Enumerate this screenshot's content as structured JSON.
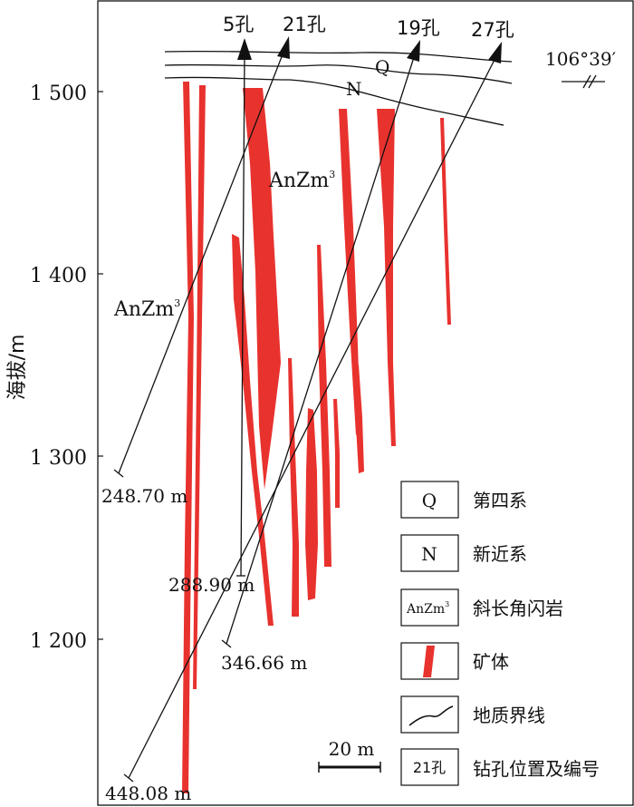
{
  "y_axis": {
    "label": "海拔/m",
    "ticks": [
      "1 500",
      "1 400",
      "1 300",
      "1 200"
    ]
  },
  "boreholes": [
    {
      "label": "5孔",
      "depth_label": "288.90 m"
    },
    {
      "label": "21孔",
      "depth_label": "248.70 m"
    },
    {
      "label": "19孔",
      "depth_label": "346.66 m"
    },
    {
      "label": "27孔",
      "depth_label": "448.08 m"
    }
  ],
  "layers": {
    "q": "Q",
    "n": "N",
    "anzm_main": "AnZm",
    "anzm_side": "AnZm",
    "superscript": "3"
  },
  "orientation": "106°39′",
  "scale_bar": "20 m",
  "legend": [
    {
      "symbol": "Q",
      "label": "第四系"
    },
    {
      "symbol": "N",
      "label": "新近系"
    },
    {
      "symbol": "AnZm",
      "symbol_sup": "3",
      "label": "斜长角闪岩"
    },
    {
      "symbol": "",
      "label": "矿体"
    },
    {
      "symbol": "",
      "label": "地质界线"
    },
    {
      "symbol": "21孔",
      "label": "钻孔位置及编号"
    }
  ],
  "colors": {
    "ore": "#e8322e",
    "line": "#111111"
  }
}
